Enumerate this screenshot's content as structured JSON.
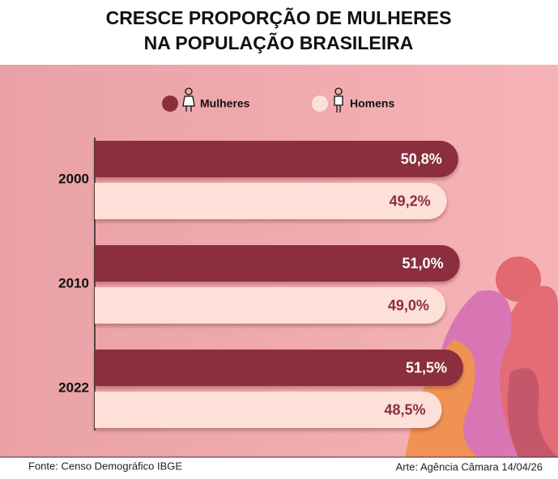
{
  "chart_data": {
    "type": "bar",
    "orientation": "horizontal",
    "title": [
      "CRESCE PROPORÇÃO DE MULHERES",
      "NA POPULAÇÃO BRASILEIRA"
    ],
    "categories": [
      "2000",
      "2010",
      "2022"
    ],
    "series": [
      {
        "name": "Mulheres",
        "color": "#8b2f3c",
        "values": [
          50.8,
          51.0,
          51.5
        ],
        "value_labels": [
          "50,8%",
          "51,0%",
          "51,5%"
        ]
      },
      {
        "name": "Homens",
        "color": "#fde0d8",
        "values": [
          49.2,
          49.0,
          48.5
        ],
        "value_labels": [
          "49,2%",
          "49,0%",
          "48,5%"
        ]
      }
    ],
    "source": "Fonte: Censo Demográfico IBGE",
    "credit": "Arte: Agência Câmara 14/04/26"
  }
}
